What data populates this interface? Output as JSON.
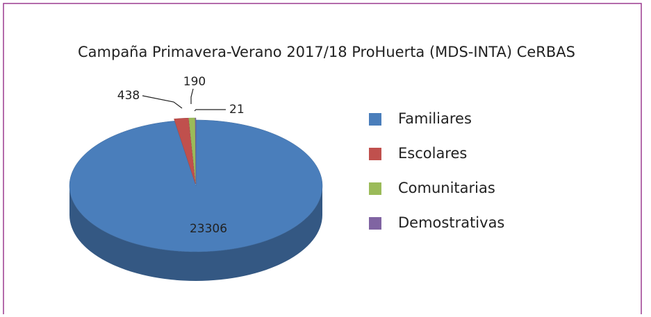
{
  "chart_data": {
    "type": "pie",
    "title": "Campaña Primavera-Verano 2017/18 ProHuerta (MDS-INTA) CeRBAS",
    "categories": [
      "Familiares",
      "Escolares",
      "Comunitarias",
      "Demostrativas"
    ],
    "values": [
      23306,
      438,
      190,
      21
    ],
    "colors": [
      "#4a7ebb",
      "#c0504d",
      "#9bbb59",
      "#8064a2"
    ],
    "legend": "right"
  }
}
